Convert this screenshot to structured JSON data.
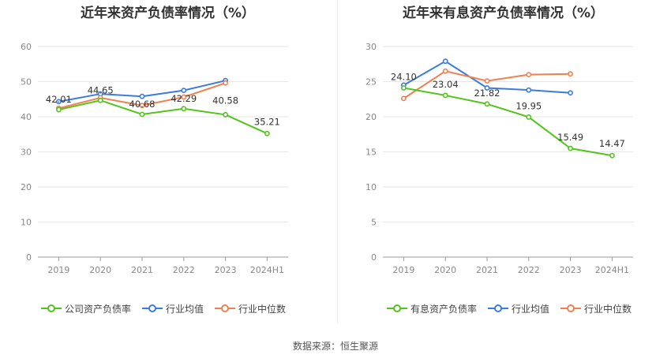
{
  "chart_data": [
    {
      "type": "line",
      "title": "近年来资产负债率情况（%）",
      "categories": [
        "2019",
        "2020",
        "2021",
        "2022",
        "2023",
        "2024H1"
      ],
      "ylim": [
        0,
        60
      ],
      "yticks": [
        0,
        10,
        20,
        30,
        40,
        50,
        60
      ],
      "grid": true,
      "legend_position": "bottom",
      "series": [
        {
          "name": "公司资产负债率",
          "color": "#52c41a",
          "values": [
            42.01,
            44.65,
            40.68,
            42.29,
            40.58,
            35.21
          ],
          "labels": [
            "42.01",
            "44.65",
            "40.68",
            "42.29",
            "40.58",
            "35.21"
          ]
        },
        {
          "name": "行业均值",
          "color": "#3b7be0",
          "values": [
            44.3,
            46.5,
            45.8,
            47.5,
            50.3,
            null
          ]
        },
        {
          "name": "行业中位数",
          "color": "#f08050",
          "values": [
            42.4,
            45.4,
            43.2,
            45.6,
            49.6,
            null
          ]
        }
      ]
    },
    {
      "type": "line",
      "title": "近年来有息资产负债率情况（%）",
      "categories": [
        "2019",
        "2020",
        "2021",
        "2022",
        "2023",
        "2024H1"
      ],
      "ylim": [
        0,
        30
      ],
      "yticks": [
        0,
        5,
        10,
        15,
        20,
        25,
        30
      ],
      "grid": true,
      "legend_position": "bottom",
      "series": [
        {
          "name": "有息资产负债率",
          "color": "#52c41a",
          "values": [
            24.1,
            23.04,
            21.82,
            19.95,
            15.49,
            14.47
          ],
          "labels": [
            "24.10",
            "23.04",
            "21.82",
            "19.95",
            "15.49",
            "14.47"
          ]
        },
        {
          "name": "行业均值",
          "color": "#3b7be0",
          "values": [
            24.5,
            27.9,
            24.1,
            23.8,
            23.4,
            null
          ]
        },
        {
          "name": "行业中位数",
          "color": "#f08050",
          "values": [
            22.6,
            26.5,
            25.1,
            26.0,
            26.1,
            null
          ]
        }
      ]
    }
  ],
  "footer": "数据来源：恒生聚源"
}
